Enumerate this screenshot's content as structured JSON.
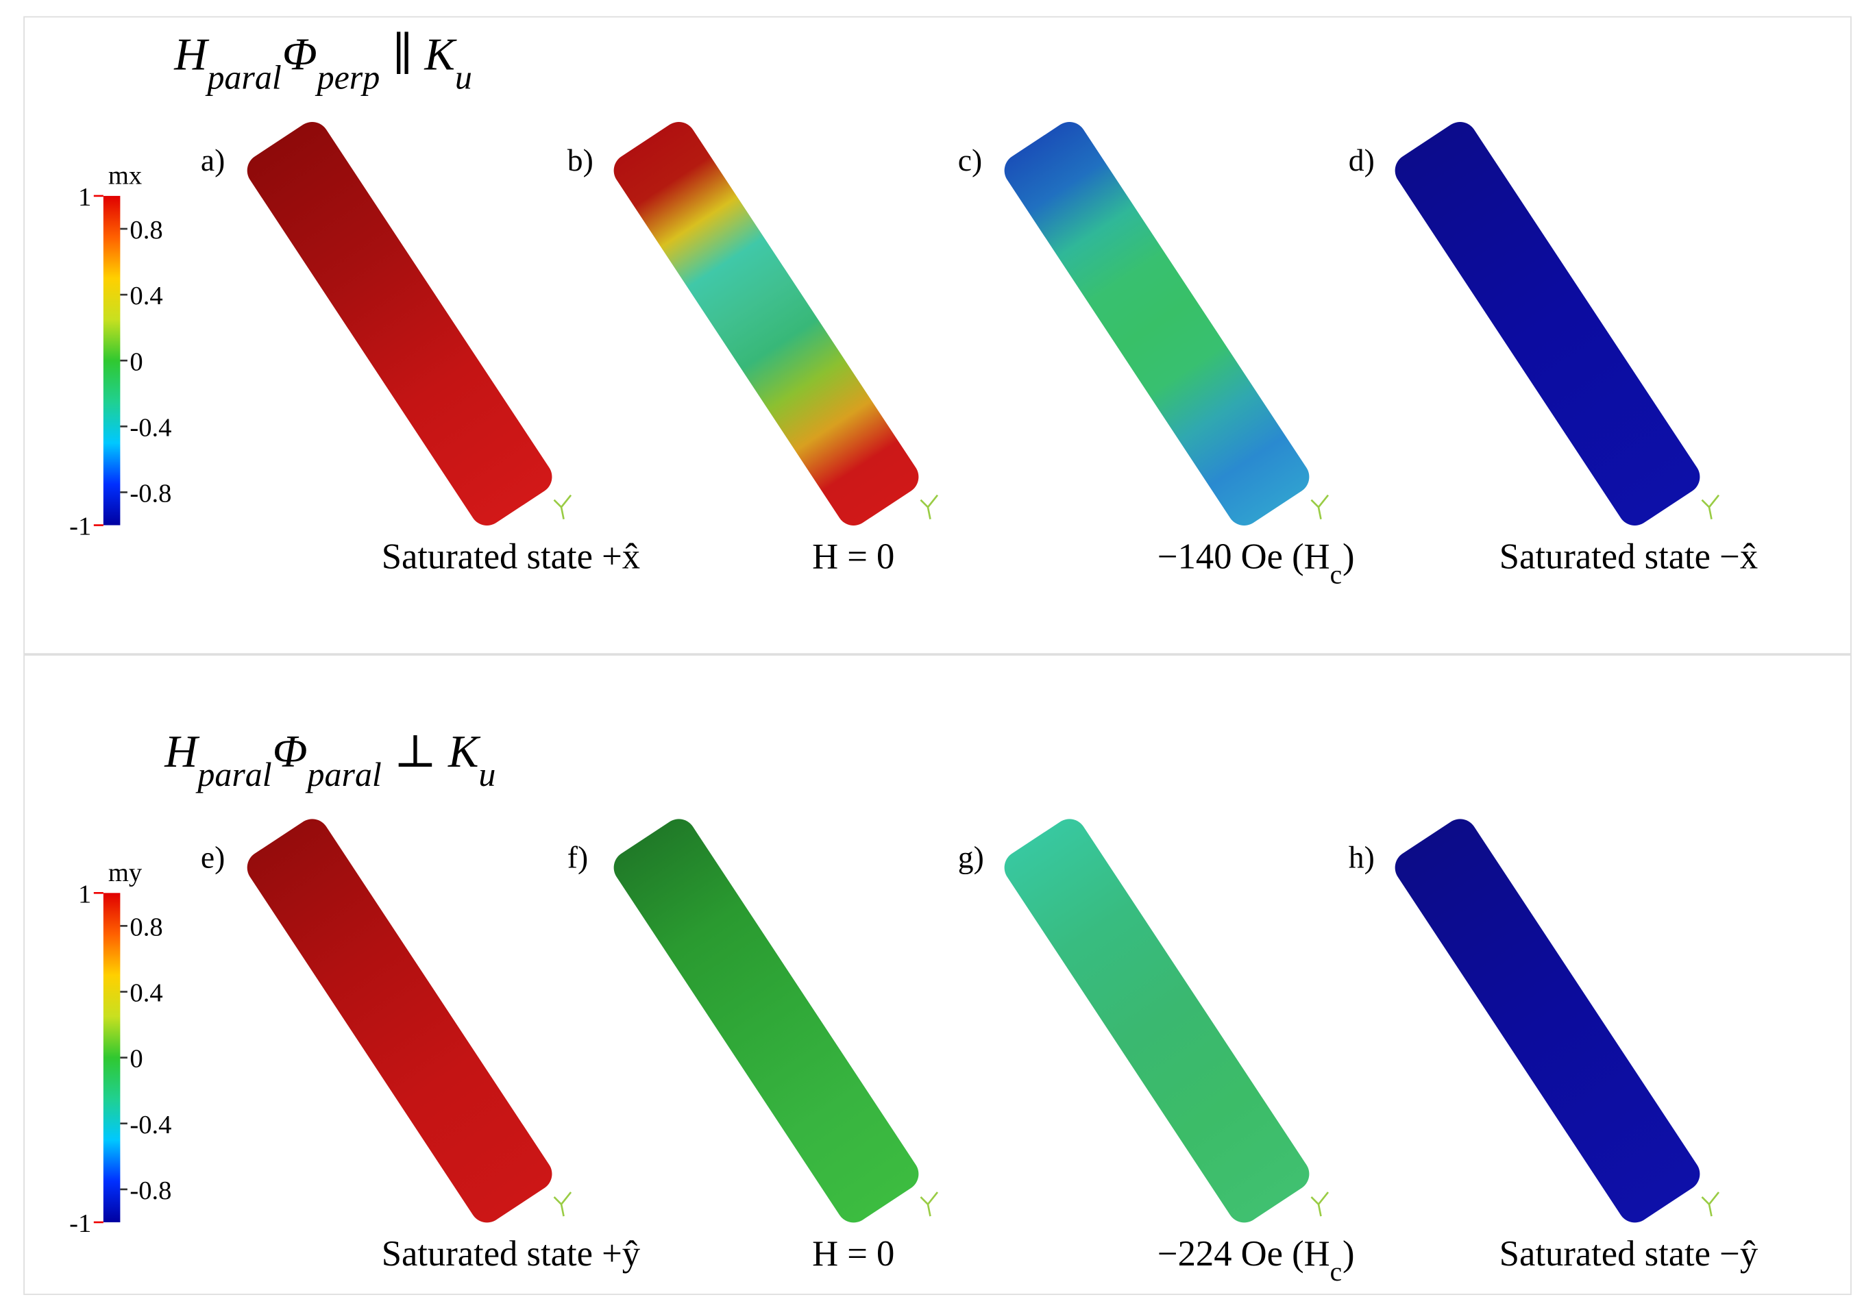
{
  "panels": [
    {
      "title": [
        {
          "text": "H",
          "sub": "paral"
        },
        {
          "text": "Φ",
          "sub": "perp"
        },
        {
          "text": " ∥ K",
          "sub": "u"
        }
      ],
      "colorbar": {
        "label": "mx",
        "range": [
          -1,
          1
        ],
        "ticks": [
          1,
          0.8,
          0.4,
          0,
          -0.4,
          -0.8,
          -1
        ]
      },
      "subplots": [
        {
          "label": "a)",
          "caption": [
            {
              "text": "Saturated state +x̂"
            }
          ],
          "colors": [
            "#8e0a0a",
            "#a50f0f",
            "#c41414",
            "#d21818"
          ]
        },
        {
          "label": "b)",
          "caption": [
            {
              "text": "H = 0"
            }
          ],
          "colors": [
            "#b01010",
            "#b41a10",
            "#d8c020",
            "#40c8a8",
            "#40c090",
            "#38b878",
            "#8cc030",
            "#d8a020",
            "#cc1818",
            "#d01818"
          ]
        },
        {
          "label": "c)",
          "caption": [
            {
              "text": "−140 Oe (H"
            },
            {
              "sub": "c"
            },
            {
              "text": ")"
            }
          ],
          "colors": [
            "#1a50b8",
            "#2070c0",
            "#30b898",
            "#38c070",
            "#38c068",
            "#38c070",
            "#30a8b0",
            "#2a8ad0",
            "#30a0d0"
          ]
        },
        {
          "label": "d)",
          "caption": [
            {
              "text": "Saturated state −x̂"
            }
          ],
          "colors": [
            "#0c0c8c",
            "#0c0ca0",
            "#0d10a8"
          ]
        }
      ]
    },
    {
      "title": [
        {
          "text": "H",
          "sub": "paral"
        },
        {
          "text": "Φ",
          "sub": "paral"
        },
        {
          "text": " ⊥ K",
          "sub": "u"
        }
      ],
      "colorbar": {
        "label": "my",
        "range": [
          -1,
          1
        ],
        "ticks": [
          1,
          0.8,
          0.4,
          0,
          -0.4,
          -0.8,
          -1
        ]
      },
      "subplots": [
        {
          "label": "e)",
          "caption": [
            {
              "text": "Saturated state +ŷ"
            }
          ],
          "colors": [
            "#950c0c",
            "#b01010",
            "#c41414",
            "#cc1616"
          ]
        },
        {
          "label": "f)",
          "caption": [
            {
              "text": "H = 0"
            }
          ],
          "colors": [
            "#207a28",
            "#2a9a30",
            "#30a838",
            "#38b440",
            "#3cbc40"
          ]
        },
        {
          "label": "g)",
          "caption": [
            {
              "text": "−224 Oe (H"
            },
            {
              "sub": "c"
            },
            {
              "text": ")"
            }
          ],
          "colors": [
            "#38c8a0",
            "#38bc80",
            "#3ab870",
            "#3cbc68",
            "#40c070"
          ]
        },
        {
          "label": "h)",
          "caption": [
            {
              "text": "Saturated state −ŷ"
            }
          ],
          "colors": [
            "#0c0c88",
            "#0c0c9c",
            "#0e10a8"
          ]
        }
      ]
    }
  ]
}
